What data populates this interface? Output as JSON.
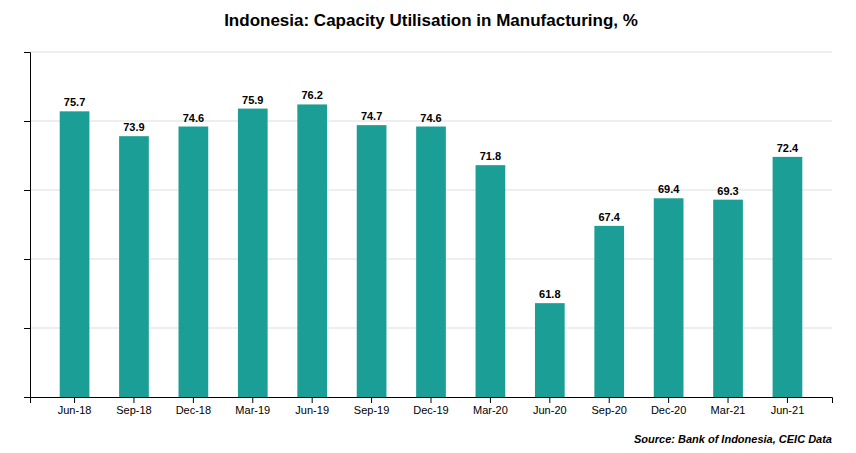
{
  "chart_data": {
    "type": "bar",
    "title": "Indonesia: Capacity Utilisation in Manufacturing, %",
    "categories": [
      "Jun-18",
      "Sep-18",
      "Dec-18",
      "Mar-19",
      "Jun-19",
      "Sep-19",
      "Dec-19",
      "Mar-20",
      "Jun-20",
      "Sep-20",
      "Dec-20",
      "Mar-21",
      "Jun-21"
    ],
    "values": [
      75.7,
      73.9,
      74.6,
      75.9,
      76.2,
      74.7,
      74.6,
      71.8,
      61.8,
      67.4,
      69.4,
      69.3,
      72.4
    ],
    "color": "#1a9e96",
    "ylim": [
      55,
      80
    ],
    "yticks": [
      60,
      65,
      70,
      75,
      80
    ],
    "grid": true,
    "data_labels": true,
    "tick_labels": "x",
    "annotations": [
      "Source: Bank of Indonesia, CEIC Data"
    ]
  }
}
